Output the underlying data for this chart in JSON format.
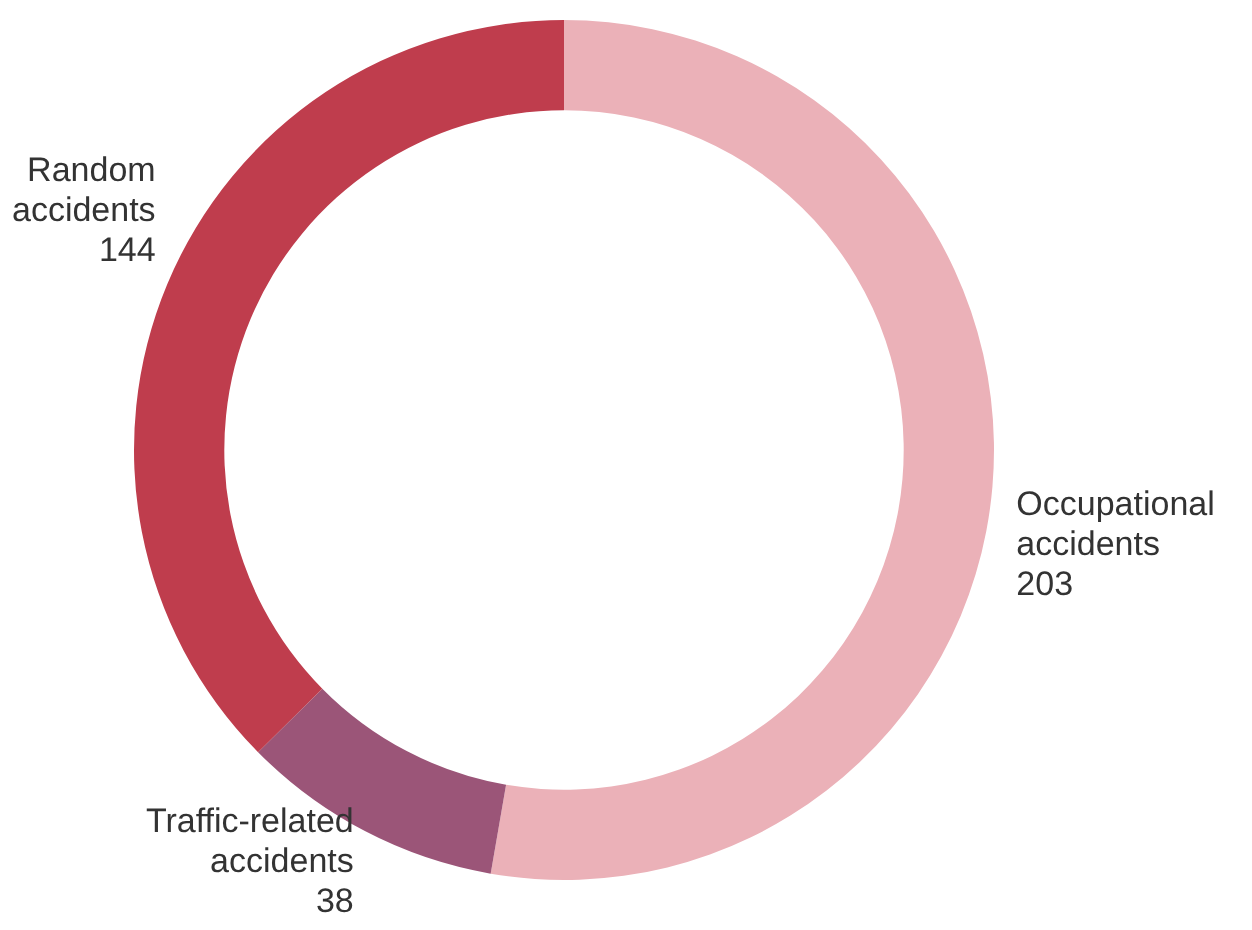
{
  "chart_data": {
    "type": "donut",
    "categories": [
      "Occupational accidents",
      "Traffic-related accidents",
      "Random accidents"
    ],
    "values": [
      203,
      38,
      144
    ],
    "colors": [
      "#ebb1b8",
      "#9b5578",
      "#bf3d4d"
    ],
    "data_labels": true,
    "legend": false
  }
}
